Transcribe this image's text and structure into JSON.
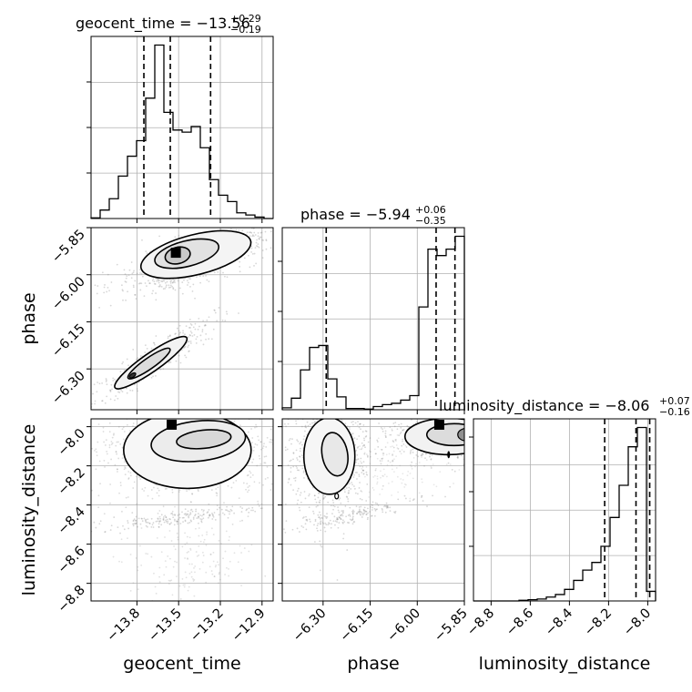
{
  "chart_data": {
    "type": "corner",
    "parameters": [
      "geocent_time",
      "phase",
      "luminosity_distance"
    ],
    "titles": [
      {
        "param": "geocent_time",
        "prefix": "geocent_time = ",
        "median": "−13.56",
        "plus": "+0.29",
        "minus": "−0.19"
      },
      {
        "param": "phase",
        "prefix": "phase = ",
        "median": "−5.94",
        "plus": "+0.06",
        "minus": "−0.35"
      },
      {
        "param": "luminosity_distance",
        "prefix": "luminosity_distance = ",
        "median": "−8.06",
        "plus": "+0.07",
        "minus": "−0.16"
      }
    ],
    "xlabels": [
      "geocent_time",
      "phase",
      "luminosity_distance"
    ],
    "ylabels": [
      "phase",
      "luminosity_distance"
    ],
    "ticks": {
      "geocent_time": {
        "values": [
          -13.8,
          -13.5,
          -13.2,
          -12.9
        ],
        "labels": [
          "−13.8",
          "−13.5",
          "−13.2",
          "−12.9"
        ]
      },
      "phase": {
        "values": [
          -6.3,
          -6.15,
          -6.0,
          -5.85
        ],
        "labels": [
          "−6.30",
          "−6.15",
          "−6.00",
          "−5.85"
        ]
      },
      "luminosity_distance": {
        "values": [
          -8.8,
          -8.6,
          -8.4,
          -8.2,
          -8.0
        ],
        "labels": [
          "−8.8",
          "−8.6",
          "−8.4",
          "−8.2",
          "−8.0"
        ]
      }
    },
    "ranges": {
      "geocent_time": [
        -14.13,
        -12.82
      ],
      "phase": [
        -6.43,
        -5.85
      ],
      "luminosity_distance": [
        -8.89,
        -7.96
      ]
    },
    "quantile_lines": {
      "geocent_time": [
        -13.75,
        -13.56,
        -13.27
      ],
      "phase": [
        -6.29,
        -5.94,
        -5.88
      ],
      "luminosity_distance": [
        -8.22,
        -8.06,
        -7.99
      ]
    },
    "histograms": {
      "geocent_time": [
        1,
        12,
        28,
        60,
        88,
        110,
        170,
        245,
        150,
        125,
        122,
        130,
        100,
        55,
        33,
        24,
        8,
        5,
        2,
        0
      ],
      "phase": [
        3,
        18,
        62,
        97,
        100,
        48,
        20,
        2,
        2,
        1,
        5,
        8,
        10,
        15,
        22,
        160,
        250,
        240,
        250,
        270
      ],
      "luminosity_distance": [
        0,
        0,
        0,
        0,
        0,
        1,
        2,
        3,
        6,
        10,
        18,
        32,
        48,
        60,
        85,
        130,
        180,
        240,
        270,
        15
      ]
    },
    "grid": true,
    "scatter_color": "#8c8c8c",
    "contour_color": "#000000"
  }
}
